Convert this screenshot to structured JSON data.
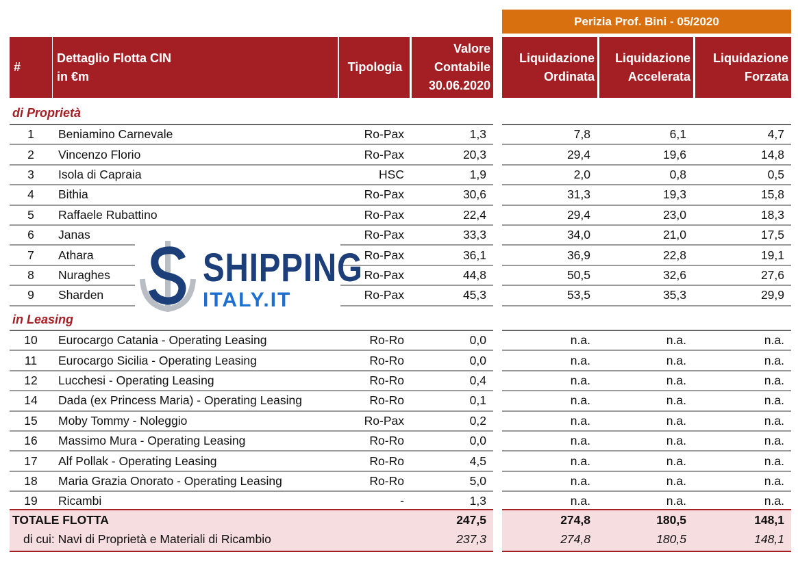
{
  "header": {
    "appraisal": "Perizia Prof. Bini - 05/2020",
    "columns": [
      [
        "#"
      ],
      [
        "Dettaglio Flotta CIN",
        "in €m"
      ],
      [
        "Tipologia"
      ],
      [
        "Valore",
        "Contabile",
        "30.06.2020"
      ],
      [
        "Liquidazione",
        "Ordinata"
      ],
      [
        "Liquidazione",
        "Accelerata"
      ],
      [
        "Liquidazione",
        "Forzata"
      ]
    ]
  },
  "sections": [
    {
      "title": "di Proprietà",
      "rows": [
        [
          "1",
          "Beniamino Carnevale",
          "Ro-Pax",
          "1,3",
          "7,8",
          "6,1",
          "4,7"
        ],
        [
          "2",
          "Vincenzo Florio",
          "Ro-Pax",
          "20,3",
          "29,4",
          "19,6",
          "14,8"
        ],
        [
          "3",
          "Isola di Capraia",
          "HSC",
          "1,9",
          "2,0",
          "0,8",
          "0,5"
        ],
        [
          "4",
          "Bithia",
          "Ro-Pax",
          "30,6",
          "31,3",
          "19,3",
          "15,8"
        ],
        [
          "5",
          "Raffaele Rubattino",
          "Ro-Pax",
          "22,4",
          "29,4",
          "23,0",
          "18,3"
        ],
        [
          "6",
          "Janas",
          "Ro-Pax",
          "33,3",
          "34,0",
          "21,0",
          "17,5"
        ],
        [
          "7",
          "Athara",
          "Ro-Pax",
          "36,1",
          "36,9",
          "22,8",
          "19,1"
        ],
        [
          "8",
          "Nuraghes",
          "Ro-Pax",
          "44,8",
          "50,5",
          "32,6",
          "27,6"
        ],
        [
          "9",
          "Sharden",
          "Ro-Pax",
          "45,3",
          "53,5",
          "35,3",
          "29,9"
        ]
      ]
    },
    {
      "title": "in Leasing",
      "rows": [
        [
          "10",
          "Eurocargo Catania - Operating Leasing",
          "Ro-Ro",
          "0,0",
          "n.a.",
          "n.a.",
          "n.a."
        ],
        [
          "11",
          "Eurocargo Sicilia - Operating Leasing",
          "Ro-Ro",
          "0,0",
          "n.a.",
          "n.a.",
          "n.a."
        ],
        [
          "12",
          "Lucchesi - Operating Leasing",
          "Ro-Ro",
          "0,4",
          "n.a.",
          "n.a.",
          "n.a."
        ],
        [
          "14",
          "Dada (ex Princess Maria) - Operating Leasing",
          "Ro-Ro",
          "0,1",
          "n.a.",
          "n.a.",
          "n.a."
        ],
        [
          "15",
          "Moby Tommy - Noleggio",
          "Ro-Pax",
          "0,2",
          "n.a.",
          "n.a.",
          "n.a."
        ],
        [
          "16",
          "Massimo Mura - Operating Leasing",
          "Ro-Ro",
          "0,0",
          "n.a.",
          "n.a.",
          "n.a."
        ],
        [
          "17",
          "Alf Pollak - Operating Leasing",
          "Ro-Ro",
          "4,5",
          "n.a.",
          "n.a.",
          "n.a."
        ],
        [
          "18",
          "Maria Grazia Onorato - Operating Leasing",
          "Ro-Ro",
          "5,0",
          "n.a.",
          "n.a.",
          "n.a."
        ],
        [
          "19",
          "Ricambi",
          "-",
          "1,3",
          "n.a.",
          "n.a.",
          "n.a."
        ]
      ]
    }
  ],
  "totals": [
    {
      "label": "TOTALE FLOTTA",
      "values": [
        "247,5",
        "274,8",
        "180,5",
        "148,1"
      ]
    },
    {
      "label": "di cui: Navi di Proprietà e Materiali di Ricambio",
      "values": [
        "237,3",
        "274,8",
        "180,5",
        "148,1"
      ]
    }
  ],
  "watermark": {
    "line1": "SHIPPING",
    "line2": "ITALY.IT"
  }
}
